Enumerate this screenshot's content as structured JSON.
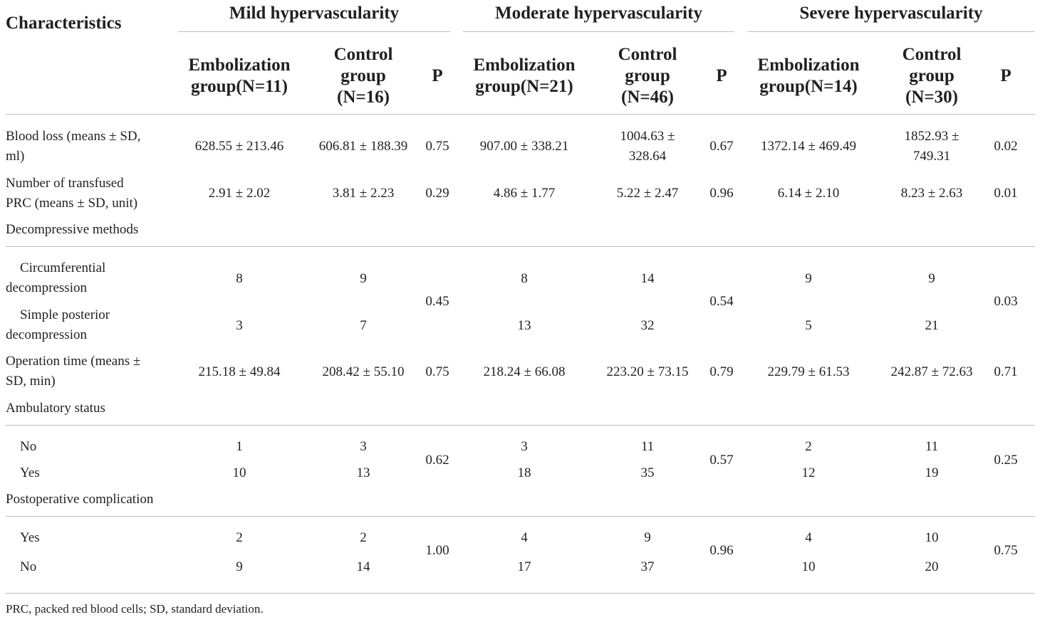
{
  "header": {
    "characteristics": "Characteristics",
    "groups": [
      "Mild hypervascularity",
      "Moderate hypervascularity",
      "Severe hypervascularity"
    ],
    "embolization": [
      [
        "Embolization",
        "group(N=11)"
      ],
      [
        "Embolization",
        "group(N=21)"
      ],
      [
        "Embolization",
        "group(N=14)"
      ]
    ],
    "control": [
      [
        "Control",
        "group",
        "(N=16)"
      ],
      [
        "Control",
        "group",
        "(N=46)"
      ],
      [
        "Control",
        "group",
        "(N=30)"
      ]
    ],
    "p": "P"
  },
  "rows": {
    "blood_loss": {
      "label": [
        "Blood loss (means ± SD,",
        "ml)"
      ],
      "values": [
        "628.55 ± 213.46",
        "606.81 ± 188.39",
        "0.75",
        "907.00 ± 338.21",
        [
          "1004.63 ±",
          "328.64"
        ],
        "0.67",
        "1372.14 ± 469.49",
        [
          "1852.93 ±",
          "749.31"
        ],
        "0.02"
      ]
    },
    "prc": {
      "label": [
        "Number of transfused",
        "PRC (means ± SD, unit)"
      ],
      "values": [
        "2.91 ± 2.02",
        "3.81 ± 2.23",
        "0.29",
        "4.86 ± 1.77",
        "5.22 ± 2.47",
        "0.96",
        "6.14 ± 2.10",
        "8.23 ± 2.63",
        "0.01"
      ]
    },
    "decompressive": {
      "label": "Decompressive methods",
      "circumferential": {
        "label": [
          "Circumferential",
          "decompression"
        ],
        "values": [
          "8",
          "9",
          "8",
          "14",
          "9",
          "9"
        ]
      },
      "posterior": {
        "label": [
          "Simple posterior",
          "decompression"
        ],
        "values": [
          "3",
          "7",
          "13",
          "32",
          "5",
          "21"
        ]
      },
      "p": [
        "0.45",
        "0.54",
        "0.03"
      ]
    },
    "operation_time": {
      "label": [
        "Operation time (means ±",
        "SD, min)"
      ],
      "values": [
        "215.18 ± 49.84",
        "208.42 ± 55.10",
        "0.75",
        "218.24 ± 66.08",
        "223.20 ± 73.15",
        "0.79",
        "229.79 ± 61.53",
        "242.87 ± 72.63",
        "0.71"
      ]
    },
    "ambulatory": {
      "label": "Ambulatory status",
      "no": {
        "label": "No",
        "values": [
          "1",
          "3",
          "3",
          "11",
          "2",
          "11"
        ]
      },
      "yes": {
        "label": "Yes",
        "values": [
          "10",
          "13",
          "18",
          "35",
          "12",
          "19"
        ]
      },
      "p": [
        "0.62",
        "0.57",
        "0.25"
      ]
    },
    "complication": {
      "label": "Postoperative complication",
      "yes": {
        "label": "Yes",
        "values": [
          "2",
          "2",
          "4",
          "9",
          "4",
          "10"
        ]
      },
      "no": {
        "label": "No",
        "values": [
          "9",
          "14",
          "17",
          "37",
          "10",
          "20"
        ]
      },
      "p": [
        "1.00",
        "0.96",
        "0.75"
      ]
    }
  },
  "footnote": "PRC, packed red blood cells; SD, standard deviation."
}
